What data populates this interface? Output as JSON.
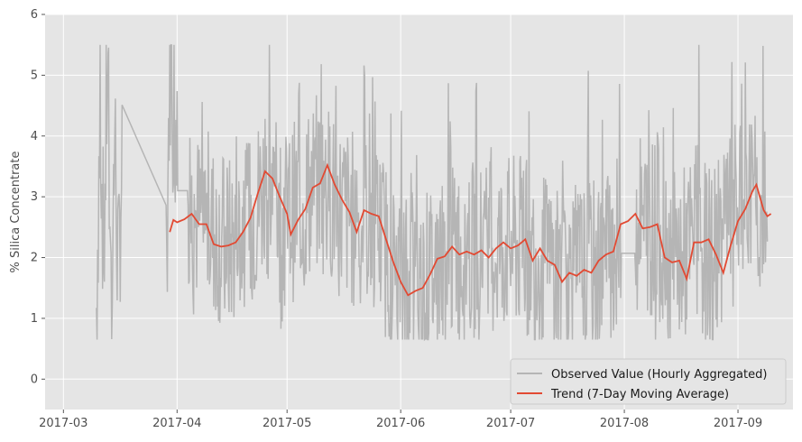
{
  "chart_data": {
    "type": "line",
    "title": "",
    "xlabel": "",
    "ylabel": "% Silica Concentrate",
    "ylim": [
      -0.5,
      6
    ],
    "xlim": [
      "2017-02-24",
      "2017-09-16"
    ],
    "y_ticks": [
      0,
      1,
      2,
      3,
      4,
      5,
      6
    ],
    "x_ticks": [
      "2017-03",
      "2017-04",
      "2017-05",
      "2017-06",
      "2017-07",
      "2017-08",
      "2017-09"
    ],
    "grid": true,
    "legend_position": "lower-right",
    "colors": {
      "observed": "#b5b5b5",
      "trend": "#e24a33",
      "background": "#e5e5e5",
      "grid": "#ffffff"
    },
    "series": [
      {
        "name": "Observed Value (Hourly Aggregated)",
        "style": "noisy-hourly",
        "data": [
          [
            "2017-03-10",
            1.2
          ],
          [
            "2017-03-11",
            4.5
          ],
          [
            "2017-03-12",
            2.0
          ],
          [
            "2017-03-13",
            5.2
          ],
          [
            "2017-03-14",
            1.3
          ],
          [
            "2017-03-15",
            4.0
          ],
          [
            "2017-03-16",
            1.6
          ],
          [
            "2017-03-17",
            3.8
          ],
          [
            "2017-03-29",
            1.3
          ],
          [
            "2017-03-30",
            5.4
          ],
          [
            "2017-04-02",
            3.1
          ],
          [
            "2017-04-05",
            2.7
          ],
          [
            "2017-04-10",
            2.5
          ],
          [
            "2017-04-15",
            2.2
          ],
          [
            "2017-04-20",
            2.4
          ],
          [
            "2017-04-25",
            3.2
          ],
          [
            "2017-04-30",
            2.6
          ],
          [
            "2017-05-05",
            2.9
          ],
          [
            "2017-05-10",
            3.3
          ],
          [
            "2017-05-15",
            2.8
          ],
          [
            "2017-05-20",
            2.6
          ],
          [
            "2017-05-25",
            2.6
          ],
          [
            "2017-05-30",
            1.8
          ],
          [
            "2017-06-04",
            1.4
          ],
          [
            "2017-06-09",
            1.7
          ],
          [
            "2017-06-14",
            2.0
          ],
          [
            "2017-06-19",
            2.1
          ],
          [
            "2017-06-24",
            2.1
          ],
          [
            "2017-06-29",
            2.2
          ],
          [
            "2017-07-04",
            2.2
          ],
          [
            "2017-07-09",
            2.0
          ],
          [
            "2017-07-14",
            1.7
          ],
          [
            "2017-07-19",
            1.7
          ],
          [
            "2017-07-24",
            1.8
          ],
          [
            "2017-07-29",
            2.2
          ],
          [
            "2017-08-01",
            2.1
          ],
          [
            "2017-08-05",
            2.6
          ],
          [
            "2017-08-10",
            2.5
          ],
          [
            "2017-08-15",
            1.9
          ],
          [
            "2017-08-20",
            2.2
          ],
          [
            "2017-08-25",
            2.0
          ],
          [
            "2017-08-30",
            2.6
          ],
          [
            "2017-09-04",
            3.0
          ],
          [
            "2017-09-09",
            2.6
          ]
        ]
      },
      {
        "name": "Trend (7-Day Moving Average)",
        "style": "line",
        "data": [
          [
            "2017-03-30",
            2.42
          ],
          [
            "2017-03-31",
            2.62
          ],
          [
            "2017-04-01",
            2.58
          ],
          [
            "2017-04-03",
            2.63
          ],
          [
            "2017-04-05",
            2.72
          ],
          [
            "2017-04-07",
            2.55
          ],
          [
            "2017-04-09",
            2.55
          ],
          [
            "2017-04-11",
            2.22
          ],
          [
            "2017-04-13",
            2.18
          ],
          [
            "2017-04-15",
            2.2
          ],
          [
            "2017-04-17",
            2.25
          ],
          [
            "2017-04-19",
            2.42
          ],
          [
            "2017-04-21",
            2.65
          ],
          [
            "2017-04-23",
            3.05
          ],
          [
            "2017-04-25",
            3.42
          ],
          [
            "2017-04-27",
            3.3
          ],
          [
            "2017-04-29",
            3.0
          ],
          [
            "2017-05-01",
            2.72
          ],
          [
            "2017-05-02",
            2.38
          ],
          [
            "2017-05-04",
            2.62
          ],
          [
            "2017-05-06",
            2.8
          ],
          [
            "2017-05-08",
            3.15
          ],
          [
            "2017-05-10",
            3.22
          ],
          [
            "2017-05-12",
            3.52
          ],
          [
            "2017-05-14",
            3.2
          ],
          [
            "2017-05-16",
            2.95
          ],
          [
            "2017-05-18",
            2.75
          ],
          [
            "2017-05-20",
            2.42
          ],
          [
            "2017-05-22",
            2.78
          ],
          [
            "2017-05-24",
            2.72
          ],
          [
            "2017-05-26",
            2.68
          ],
          [
            "2017-05-28",
            2.3
          ],
          [
            "2017-05-30",
            1.92
          ],
          [
            "2017-06-01",
            1.6
          ],
          [
            "2017-06-03",
            1.38
          ],
          [
            "2017-06-05",
            1.45
          ],
          [
            "2017-06-07",
            1.5
          ],
          [
            "2017-06-09",
            1.72
          ],
          [
            "2017-06-11",
            1.98
          ],
          [
            "2017-06-13",
            2.02
          ],
          [
            "2017-06-15",
            2.18
          ],
          [
            "2017-06-17",
            2.05
          ],
          [
            "2017-06-19",
            2.1
          ],
          [
            "2017-06-21",
            2.05
          ],
          [
            "2017-06-23",
            2.12
          ],
          [
            "2017-06-25",
            2.0
          ],
          [
            "2017-06-27",
            2.15
          ],
          [
            "2017-06-29",
            2.25
          ],
          [
            "2017-07-01",
            2.15
          ],
          [
            "2017-07-03",
            2.2
          ],
          [
            "2017-07-05",
            2.3
          ],
          [
            "2017-07-07",
            1.95
          ],
          [
            "2017-07-09",
            2.15
          ],
          [
            "2017-07-11",
            1.95
          ],
          [
            "2017-07-13",
            1.88
          ],
          [
            "2017-07-15",
            1.6
          ],
          [
            "2017-07-17",
            1.75
          ],
          [
            "2017-07-19",
            1.7
          ],
          [
            "2017-07-21",
            1.8
          ],
          [
            "2017-07-23",
            1.75
          ],
          [
            "2017-07-25",
            1.95
          ],
          [
            "2017-07-27",
            2.05
          ],
          [
            "2017-07-29",
            2.1
          ],
          [
            "2017-07-31",
            2.55
          ],
          [
            "2017-08-02",
            2.6
          ],
          [
            "2017-08-04",
            2.72
          ],
          [
            "2017-08-06",
            2.48
          ],
          [
            "2017-08-08",
            2.5
          ],
          [
            "2017-08-10",
            2.55
          ],
          [
            "2017-08-12",
            2.0
          ],
          [
            "2017-08-14",
            1.92
          ],
          [
            "2017-08-16",
            1.95
          ],
          [
            "2017-08-18",
            1.65
          ],
          [
            "2017-08-20",
            2.25
          ],
          [
            "2017-08-22",
            2.25
          ],
          [
            "2017-08-24",
            2.3
          ],
          [
            "2017-08-26",
            2.05
          ],
          [
            "2017-08-28",
            1.75
          ],
          [
            "2017-08-30",
            2.2
          ],
          [
            "2017-09-01",
            2.6
          ],
          [
            "2017-09-03",
            2.8
          ],
          [
            "2017-09-05",
            3.1
          ],
          [
            "2017-09-06",
            3.2
          ],
          [
            "2017-09-08",
            2.78
          ],
          [
            "2017-09-09",
            2.68
          ],
          [
            "2017-09-10",
            2.72
          ]
        ]
      }
    ]
  }
}
